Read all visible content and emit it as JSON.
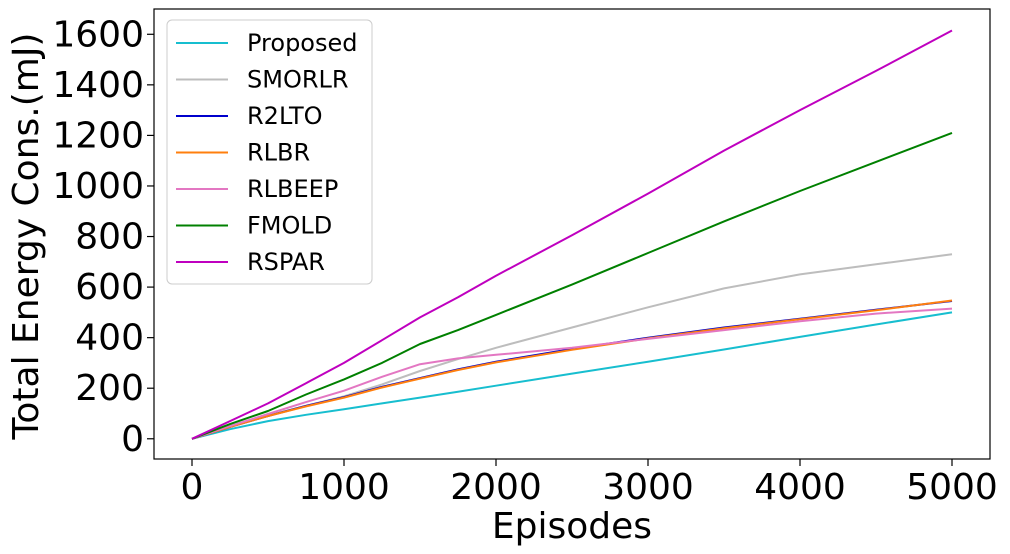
{
  "chart_data": {
    "type": "line",
    "title": "",
    "xlabel": "Episodes",
    "ylabel": "Total Energy Cons.(mJ)",
    "xlim": [
      -250,
      5250
    ],
    "ylim": [
      -80,
      1700
    ],
    "xticks": [
      0,
      1000,
      2000,
      3000,
      4000,
      5000
    ],
    "yticks": [
      0,
      200,
      400,
      600,
      800,
      1000,
      1200,
      1400,
      1600
    ],
    "grid": false,
    "legend_position": "top-left",
    "x": [
      0,
      250,
      500,
      750,
      1000,
      1250,
      1500,
      1750,
      2000,
      2500,
      3000,
      3500,
      4000,
      4500,
      5000
    ],
    "series": [
      {
        "name": "Proposed",
        "color": "#17becf",
        "values": [
          0,
          38,
          70,
          95,
          117,
          140,
          163,
          186,
          210,
          258,
          305,
          353,
          403,
          452,
          500
        ]
      },
      {
        "name": "SMORLR",
        "color": "#bdbdbd",
        "values": [
          0,
          50,
          92,
          130,
          168,
          215,
          268,
          315,
          360,
          440,
          520,
          595,
          650,
          690,
          730
        ]
      },
      {
        "name": "R2LTO",
        "color": "#0000cc",
        "values": [
          0,
          47,
          90,
          130,
          165,
          205,
          240,
          275,
          305,
          355,
          400,
          440,
          475,
          510,
          545
        ]
      },
      {
        "name": "RLBR",
        "color": "#ff7f0e",
        "values": [
          0,
          47,
          90,
          128,
          163,
          203,
          238,
          272,
          302,
          352,
          397,
          437,
          473,
          508,
          547
        ]
      },
      {
        "name": "RLBEEP",
        "color": "#e377c2",
        "values": [
          0,
          50,
          98,
          145,
          190,
          245,
          295,
          318,
          332,
          360,
          395,
          430,
          465,
          495,
          515
        ]
      },
      {
        "name": "FMOLD",
        "color": "#008000",
        "values": [
          0,
          58,
          110,
          175,
          235,
          300,
          375,
          430,
          490,
          610,
          735,
          860,
          980,
          1095,
          1210
        ]
      },
      {
        "name": "RSPAR",
        "color": "#bf00bf",
        "values": [
          0,
          70,
          140,
          220,
          300,
          390,
          480,
          560,
          645,
          805,
          970,
          1140,
          1300,
          1455,
          1615
        ]
      }
    ]
  }
}
